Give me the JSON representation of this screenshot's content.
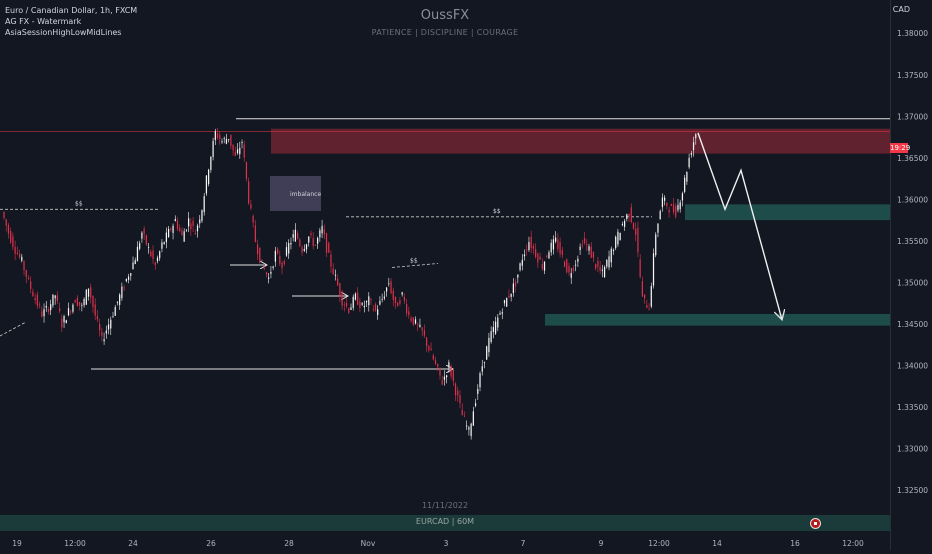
{
  "legend": {
    "symbol": "Euro / Canadian Dollar, 1h, FXCM",
    "indicator1": "AG FX - Watermark",
    "indicator2": "AsiaSessionHighLowMidLines"
  },
  "watermark": {
    "title": "OussFX",
    "subtitle": "PATIENCE  |  DISCIPLINE  |  COURAGE",
    "date": "11/11/2022",
    "symbol_footer": "EURCAD | 60M"
  },
  "axis": {
    "currency": "CAD"
  },
  "price_tag": "19:29",
  "chart_data": {
    "type": "candlestick",
    "ylim": [
      1.322,
      1.384
    ],
    "y_ticks": [
      "1.38000",
      "1.37500",
      "1.37000",
      "1.36500",
      "1.36000",
      "1.35500",
      "1.35000",
      "1.34500",
      "1.34000",
      "1.33500",
      "1.33000",
      "1.32500"
    ],
    "x_ticks": [
      "19",
      "12:00",
      "24",
      "26",
      "28",
      "Nov",
      "3",
      "7",
      "9",
      "12:00",
      "14",
      "16",
      "12:00"
    ],
    "annotations": [
      {
        "type": "text",
        "text": "imbalance"
      },
      {
        "type": "text",
        "text": "$$"
      },
      {
        "type": "text",
        "text": "$$"
      },
      {
        "type": "text",
        "text": "$$"
      }
    ],
    "levels": {
      "supply_zone": [
        1.3655,
        1.3685
      ],
      "demand_zone_upper": [
        1.3575,
        1.3594
      ],
      "demand_zone_lower": [
        1.3448,
        1.3462
      ],
      "top_line": 1.3697,
      "current_price": 1.3682,
      "liquidity_left": 1.3588,
      "liquidity_mid": 1.3579,
      "liquidity_small": 1.3518
    },
    "path_closes": [
      1.3585,
      1.356,
      1.354,
      1.3525,
      1.35,
      1.348,
      1.3462,
      1.347,
      1.3485,
      1.345,
      1.3465,
      1.348,
      1.347,
      1.3495,
      1.346,
      1.343,
      1.345,
      1.347,
      1.349,
      1.351,
      1.353,
      1.356,
      1.354,
      1.352,
      1.3545,
      1.356,
      1.3575,
      1.3555,
      1.3575,
      1.356,
      1.359,
      1.364,
      1.368,
      1.367,
      1.3675,
      1.365,
      1.367,
      1.36,
      1.355,
      1.352,
      1.3505,
      1.3535,
      1.352,
      1.3545,
      1.356,
      1.354,
      1.3555,
      1.3545,
      1.3565,
      1.353,
      1.3505,
      1.3478,
      1.3468,
      1.3482,
      1.347,
      1.3478,
      1.3465,
      1.348,
      1.35,
      1.347,
      1.3485,
      1.346,
      1.345,
      1.344,
      1.342,
      1.34,
      1.338,
      1.34,
      1.337,
      1.334,
      1.332,
      1.336,
      1.34,
      1.343,
      1.345,
      1.347,
      1.3485,
      1.35,
      1.353,
      1.355,
      1.3535,
      1.352,
      1.354,
      1.355,
      1.353,
      1.351,
      1.3525,
      1.355,
      1.354,
      1.352,
      1.351,
      1.353,
      1.355,
      1.357,
      1.3585,
      1.356,
      1.348,
      1.347,
      1.356,
      1.36,
      1.359,
      1.3585,
      1.361,
      1.365,
      1.368
    ],
    "projection": [
      1.368,
      1.3588,
      1.3635,
      1.3455
    ]
  }
}
